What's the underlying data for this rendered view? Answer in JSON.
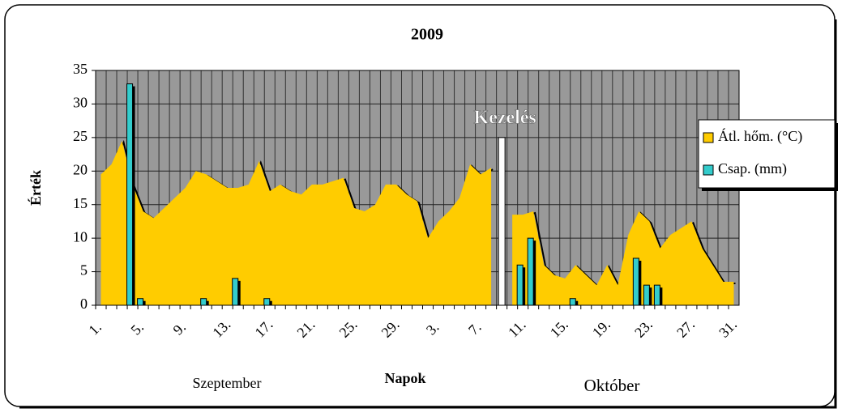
{
  "chart_data": {
    "type": "area-bar",
    "title": "2009",
    "y_label": "Érték",
    "x_label": "Napok",
    "annotations": [
      "Szeptember",
      "Október"
    ],
    "categories": [
      "1.",
      null,
      null,
      null,
      "5.",
      null,
      null,
      null,
      "9.",
      null,
      null,
      null,
      "13.",
      null,
      null,
      null,
      "17.",
      null,
      null,
      null,
      "21.",
      null,
      null,
      null,
      "25.",
      null,
      null,
      null,
      "29.",
      null,
      null,
      null,
      "3.",
      null,
      null,
      null,
      "7.",
      null,
      null,
      null,
      "11.",
      null,
      null,
      null,
      "15.",
      null,
      null,
      null,
      "19.",
      null,
      null,
      null,
      "23.",
      null,
      null,
      null,
      "27.",
      null,
      null,
      null,
      "31."
    ],
    "series": [
      {
        "name": "Átl. hőm. (°C)",
        "kind": "area",
        "color": "#ffcc00",
        "values": [
          19.5,
          21,
          24.5,
          18,
          14,
          13,
          14.5,
          16,
          17.5,
          20,
          19.5,
          18.5,
          17.5,
          17.5,
          18,
          21.5,
          17,
          18,
          17,
          16.5,
          18,
          18,
          18.5,
          19,
          14.5,
          14,
          15,
          18,
          18,
          16.5,
          15.5,
          10,
          12.5,
          14,
          16,
          21,
          19.5,
          20.5,
          null,
          13.5,
          13.5,
          14,
          6,
          4.5,
          4,
          6,
          4.5,
          3,
          6,
          3,
          10.5,
          14,
          12.5,
          8.5,
          10.5,
          11.5,
          12.5,
          8.5,
          6,
          3.5,
          3.5
        ]
      },
      {
        "name": "Csap. (mm)",
        "kind": "bar",
        "color": "#33cccc",
        "values": [
          0,
          0,
          0,
          33,
          1,
          0,
          0,
          0,
          0,
          0,
          1,
          0,
          0,
          4,
          0,
          0,
          1,
          0,
          0,
          0,
          0,
          0,
          0,
          0,
          0,
          0,
          0,
          0,
          0,
          0,
          0,
          0,
          0,
          0,
          0,
          0,
          0,
          0,
          0,
          0,
          6,
          10,
          0,
          0,
          0,
          1,
          0,
          0,
          0,
          0,
          0,
          7,
          3,
          3,
          0,
          0,
          0,
          0,
          0,
          0,
          0
        ]
      },
      {
        "name": "Kezelés",
        "kind": "marker-bar",
        "color": "#ffffff",
        "in_legend": false,
        "values": [
          null,
          null,
          null,
          null,
          null,
          null,
          null,
          null,
          null,
          null,
          null,
          null,
          null,
          null,
          null,
          null,
          null,
          null,
          null,
          null,
          null,
          null,
          null,
          null,
          null,
          null,
          null,
          null,
          null,
          null,
          null,
          null,
          null,
          null,
          null,
          null,
          null,
          null,
          25,
          null,
          null,
          null,
          null,
          null,
          null,
          null,
          null,
          null,
          null,
          null,
          null,
          null,
          null,
          null,
          null,
          null,
          null,
          null,
          null,
          null,
          null
        ]
      }
    ],
    "ylim": [
      0,
      35
    ],
    "yticks": [
      0,
      5,
      10,
      15,
      20,
      25,
      30,
      35
    ],
    "grid": true,
    "plot_color": "#999999",
    "legend": "right"
  }
}
